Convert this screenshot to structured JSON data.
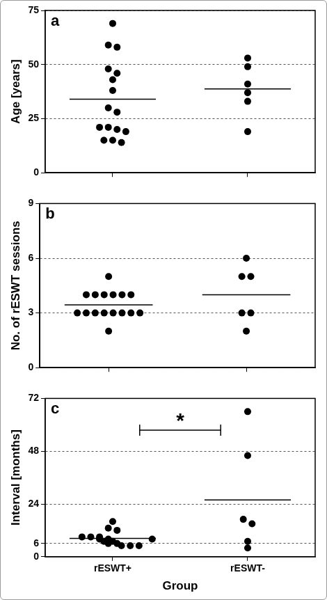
{
  "chart_data": [
    {
      "type": "scatter",
      "title": "a",
      "y_label": "Age [years]",
      "categories": [
        "rESWT+",
        "rESWT-"
      ],
      "values": [
        [
          69,
          59,
          58,
          48,
          46,
          43,
          38,
          30,
          28,
          21,
          21,
          20,
          19,
          15,
          15,
          14
        ],
        [
          53,
          49,
          41,
          37,
          33,
          19
        ]
      ],
      "means": [
        34,
        38.7
      ],
      "color": "#000000",
      "marker": "circle",
      "ylim": [
        0,
        75
      ],
      "yticks": [
        0,
        25,
        50,
        75
      ],
      "grid": true,
      "tick_labels": "y"
    },
    {
      "type": "scatter",
      "title": "b",
      "y_label": "No. of rESWT sessions",
      "categories": [
        "rESWT+",
        "rESWT-"
      ],
      "values": [
        [
          5,
          4,
          4,
          4,
          4,
          4,
          4,
          3,
          3,
          3,
          3,
          3,
          3,
          3,
          3,
          2
        ],
        [
          6,
          5,
          5,
          3,
          3,
          2
        ]
      ],
      "means": [
        3.44,
        4
      ],
      "color": "#000000",
      "marker": "circle",
      "ylim": [
        0,
        9
      ],
      "yticks": [
        0,
        3,
        6,
        9
      ],
      "grid": true,
      "tick_labels": "y"
    },
    {
      "type": "scatter",
      "title": "c",
      "y_label": "Interval [months]",
      "x_label": "Group",
      "categories": [
        "rESWT+",
        "rESWT-"
      ],
      "values": [
        [
          16,
          13,
          12,
          9,
          9,
          9,
          8,
          8,
          7,
          7,
          6,
          6,
          5,
          5,
          5,
          8
        ],
        [
          66,
          46,
          17,
          15,
          7,
          4
        ]
      ],
      "means": [
        8.3,
        25.8
      ],
      "color": "#000000",
      "marker": "circle",
      "ylim": [
        0,
        72
      ],
      "yticks": [
        0,
        6,
        24,
        48,
        72
      ],
      "grid": true,
      "annotations": [
        {
          "text": "*",
          "between": [
            "rESWT+",
            "rESWT-"
          ]
        }
      ]
    }
  ]
}
